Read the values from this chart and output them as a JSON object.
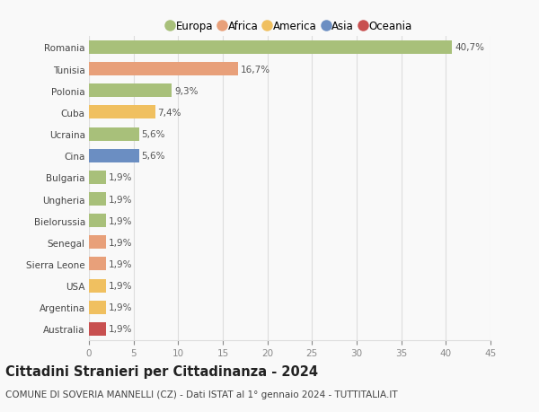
{
  "categories": [
    "Romania",
    "Tunisia",
    "Polonia",
    "Cuba",
    "Ucraina",
    "Cina",
    "Bulgaria",
    "Ungheria",
    "Bielorussia",
    "Senegal",
    "Sierra Leone",
    "USA",
    "Argentina",
    "Australia"
  ],
  "values": [
    40.7,
    16.7,
    9.3,
    7.4,
    5.6,
    5.6,
    1.9,
    1.9,
    1.9,
    1.9,
    1.9,
    1.9,
    1.9,
    1.9
  ],
  "labels": [
    "40,7%",
    "16,7%",
    "9,3%",
    "7,4%",
    "5,6%",
    "5,6%",
    "1,9%",
    "1,9%",
    "1,9%",
    "1,9%",
    "1,9%",
    "1,9%",
    "1,9%",
    "1,9%"
  ],
  "continents": [
    "Europa",
    "Africa",
    "Europa",
    "America",
    "Europa",
    "Asia",
    "Europa",
    "Europa",
    "Europa",
    "Africa",
    "Africa",
    "America",
    "America",
    "Oceania"
  ],
  "continent_colors": {
    "Europa": "#a8c07a",
    "Africa": "#e8a07a",
    "America": "#f0c060",
    "Asia": "#6b8ec2",
    "Oceania": "#c85050"
  },
  "legend_order": [
    "Europa",
    "Africa",
    "America",
    "Asia",
    "Oceania"
  ],
  "title": "Cittadini Stranieri per Cittadinanza - 2024",
  "subtitle": "COMUNE DI SOVERIA MANNELLI (CZ) - Dati ISTAT al 1° gennaio 2024 - TUTTITALIA.IT",
  "xlim": [
    0,
    45
  ],
  "xticks": [
    0,
    5,
    10,
    15,
    20,
    25,
    30,
    35,
    40,
    45
  ],
  "background_color": "#f9f9f9",
  "bar_height": 0.62,
  "grid_color": "#dddddd",
  "label_fontsize": 7.5,
  "tick_label_fontsize": 7.5,
  "title_fontsize": 10.5,
  "subtitle_fontsize": 7.5
}
